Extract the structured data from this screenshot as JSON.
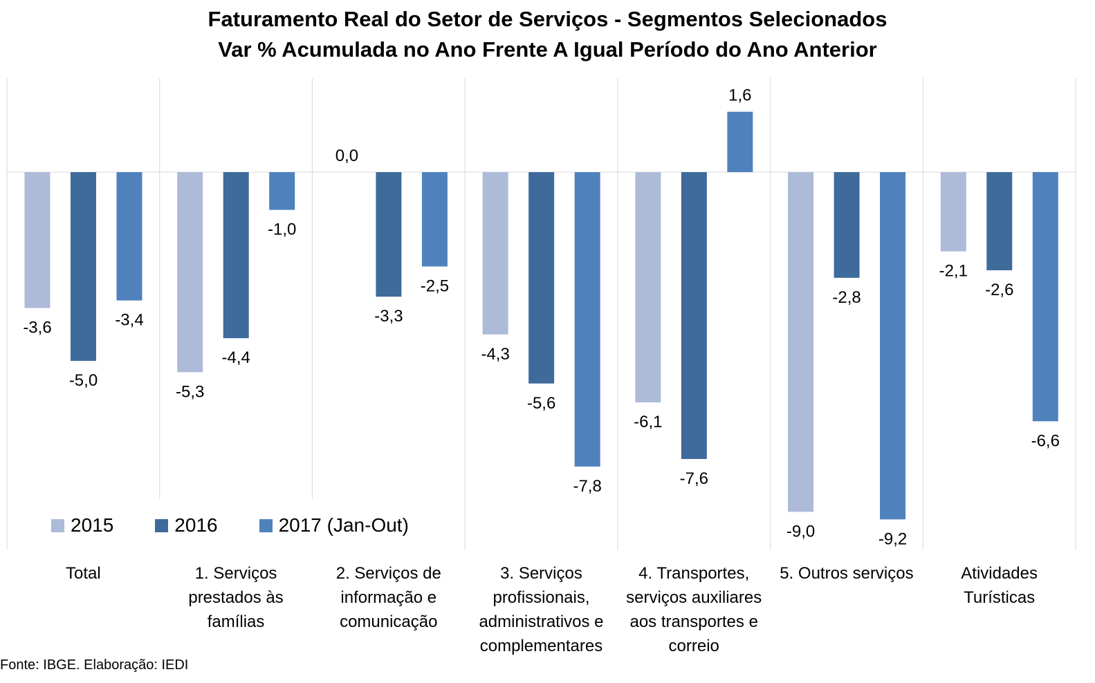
{
  "chart_data": {
    "type": "bar",
    "title": "Faturamento Real do Setor de Serviços - Segmentos Selecionados",
    "subtitle": "Var % Acumulada no Ano Frente A Igual Período do Ano Anterior",
    "xlabel": "",
    "ylabel": "",
    "ylim": [
      -10.7,
      2.8
    ],
    "grid": "vertical category separators",
    "legend": "bottom-left",
    "categories": [
      "Total",
      "1. Serviços prestados às famílias",
      "2. Serviços de informação e comunicação",
      "3. Serviços profissionais, administrativos e complementares",
      "4. Transportes, serviços auxiliares aos transportes e correio",
      "5. Outros serviços",
      "Atividades Turísticas"
    ],
    "category_lines": [
      [
        "Total"
      ],
      [
        "1. Serviços",
        "prestados às",
        "famílias"
      ],
      [
        "2. Serviços de",
        "informação e",
        "comunicação"
      ],
      [
        "3. Serviços",
        "profissionais,",
        "administrativos e",
        "complementares"
      ],
      [
        "4. Transportes,",
        "serviços auxiliares",
        "aos transportes e",
        "correio"
      ],
      [
        "5. Outros serviços"
      ],
      [
        "Atividades",
        "Turísticas"
      ]
    ],
    "series": [
      {
        "name": "2015",
        "color": "#adbad8",
        "values": [
          -3.6,
          -5.3,
          0.0,
          -4.3,
          -6.1,
          -9.0,
          -2.1
        ],
        "labels": [
          "-3,6",
          "-5,3",
          "0,0",
          "-4,3",
          "-6,1",
          "-9,0",
          "-2,1"
        ]
      },
      {
        "name": "2016",
        "color": "#3f6a9c",
        "values": [
          -5.0,
          -4.4,
          -3.3,
          -5.6,
          -7.6,
          -2.8,
          -2.6
        ],
        "labels": [
          "-5,0",
          "-4,4",
          "-3,3",
          "-5,6",
          "-7,6",
          "-2,8",
          "-2,6"
        ]
      },
      {
        "name": "2017 (Jan-Out)",
        "color": "#4f81bd",
        "values": [
          -3.4,
          -1.0,
          -2.5,
          -7.8,
          1.6,
          -9.2,
          -6.6
        ],
        "labels": [
          "-3,4",
          "-1,0",
          "-2,5",
          "-7,8",
          "1,6",
          "-9,2",
          "-6,6"
        ]
      }
    ]
  },
  "footer": {
    "source": "Fonte: IBGE. Elaboração: IEDI"
  }
}
